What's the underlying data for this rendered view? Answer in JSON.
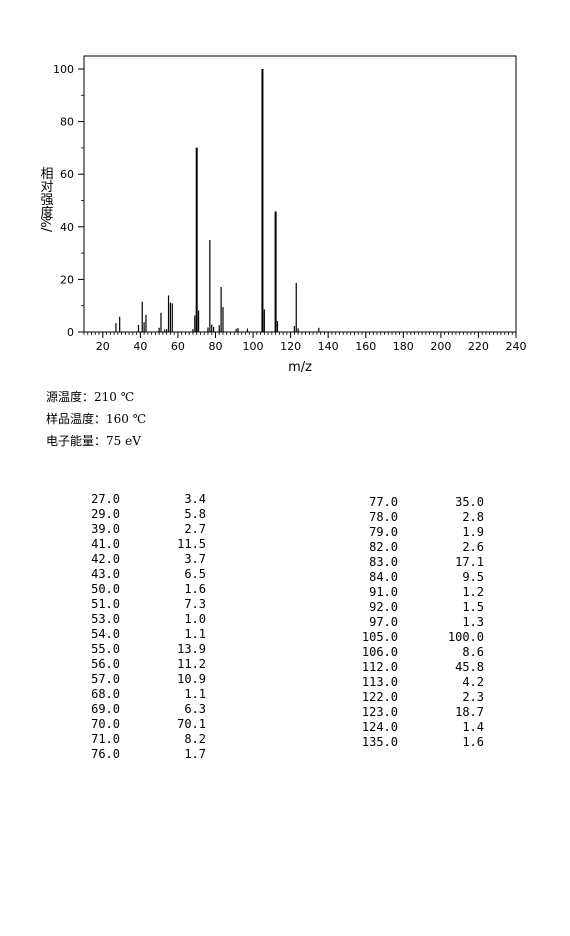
{
  "chart_data": {
    "type": "bar",
    "xlabel": "m/z",
    "ylabel": "相对强度/%",
    "xlim": [
      10,
      240
    ],
    "ylim": [
      0,
      105
    ],
    "x_ticks": [
      20,
      40,
      60,
      80,
      100,
      120,
      140,
      160,
      180,
      200,
      220,
      240
    ],
    "y_ticks": [
      0,
      20,
      40,
      60,
      80,
      100
    ],
    "peaks": [
      {
        "mz": 27.0,
        "intensity": 3.4
      },
      {
        "mz": 29.0,
        "intensity": 5.8
      },
      {
        "mz": 39.0,
        "intensity": 2.7
      },
      {
        "mz": 41.0,
        "intensity": 11.5
      },
      {
        "mz": 42.0,
        "intensity": 3.7
      },
      {
        "mz": 43.0,
        "intensity": 6.5
      },
      {
        "mz": 50.0,
        "intensity": 1.6
      },
      {
        "mz": 51.0,
        "intensity": 7.3
      },
      {
        "mz": 53.0,
        "intensity": 1.0
      },
      {
        "mz": 54.0,
        "intensity": 1.1
      },
      {
        "mz": 55.0,
        "intensity": 13.9
      },
      {
        "mz": 56.0,
        "intensity": 11.2
      },
      {
        "mz": 57.0,
        "intensity": 10.9
      },
      {
        "mz": 68.0,
        "intensity": 1.1
      },
      {
        "mz": 69.0,
        "intensity": 6.3
      },
      {
        "mz": 70.0,
        "intensity": 70.1
      },
      {
        "mz": 71.0,
        "intensity": 8.2
      },
      {
        "mz": 76.0,
        "intensity": 1.7
      },
      {
        "mz": 77.0,
        "intensity": 35.0
      },
      {
        "mz": 78.0,
        "intensity": 2.8
      },
      {
        "mz": 79.0,
        "intensity": 1.9
      },
      {
        "mz": 82.0,
        "intensity": 2.6
      },
      {
        "mz": 83.0,
        "intensity": 17.1
      },
      {
        "mz": 84.0,
        "intensity": 9.5
      },
      {
        "mz": 91.0,
        "intensity": 1.2
      },
      {
        "mz": 92.0,
        "intensity": 1.5
      },
      {
        "mz": 97.0,
        "intensity": 1.3
      },
      {
        "mz": 105.0,
        "intensity": 100.0
      },
      {
        "mz": 106.0,
        "intensity": 8.6
      },
      {
        "mz": 112.0,
        "intensity": 45.8
      },
      {
        "mz": 113.0,
        "intensity": 4.2
      },
      {
        "mz": 122.0,
        "intensity": 2.3
      },
      {
        "mz": 123.0,
        "intensity": 18.7
      },
      {
        "mz": 124.0,
        "intensity": 1.4
      },
      {
        "mz": 135.0,
        "intensity": 1.6
      }
    ]
  },
  "conditions": [
    {
      "label": "源温度",
      "value": "210 ℃"
    },
    {
      "label": "样品温度",
      "value": "160 ℃"
    },
    {
      "label": "电子能量",
      "value": "75 eV"
    }
  ],
  "table_left": [
    [
      "27.0",
      "3.4"
    ],
    [
      "29.0",
      "5.8"
    ],
    [
      "39.0",
      "2.7"
    ],
    [
      "41.0",
      "11.5"
    ],
    [
      "42.0",
      "3.7"
    ],
    [
      "43.0",
      "6.5"
    ],
    [
      "50.0",
      "1.6"
    ],
    [
      "51.0",
      "7.3"
    ],
    [
      "53.0",
      "1.0"
    ],
    [
      "54.0",
      "1.1"
    ],
    [
      "55.0",
      "13.9"
    ],
    [
      "56.0",
      "11.2"
    ],
    [
      "57.0",
      "10.9"
    ],
    [
      "68.0",
      "1.1"
    ],
    [
      "69.0",
      "6.3"
    ],
    [
      "70.0",
      "70.1"
    ],
    [
      "71.0",
      "8.2"
    ],
    [
      "76.0",
      "1.7"
    ]
  ],
  "table_right": [
    [
      "77.0",
      "35.0"
    ],
    [
      "78.0",
      "2.8"
    ],
    [
      "79.0",
      "1.9"
    ],
    [
      "82.0",
      "2.6"
    ],
    [
      "83.0",
      "17.1"
    ],
    [
      "84.0",
      "9.5"
    ],
    [
      "91.0",
      "1.2"
    ],
    [
      "92.0",
      "1.5"
    ],
    [
      "97.0",
      "1.3"
    ],
    [
      "105.0",
      "100.0"
    ],
    [
      "106.0",
      "8.6"
    ],
    [
      "112.0",
      "45.8"
    ],
    [
      "113.0",
      "4.2"
    ],
    [
      "122.0",
      "2.3"
    ],
    [
      "123.0",
      "18.7"
    ],
    [
      "124.0",
      "1.4"
    ],
    [
      "135.0",
      "1.6"
    ]
  ]
}
